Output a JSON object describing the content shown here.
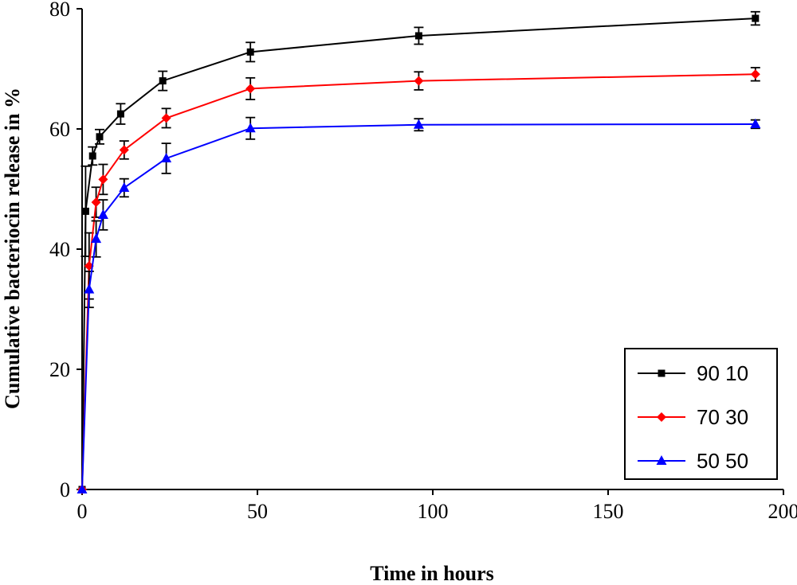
{
  "chart_data": {
    "type": "line",
    "title": "",
    "xlabel": "Time in hours",
    "ylabel": "Cumulative bacteriocin release in %",
    "xlim": [
      0,
      200
    ],
    "ylim": [
      0,
      80
    ],
    "xticks": [
      0,
      50,
      100,
      150,
      200
    ],
    "xtick_labels": [
      "0",
      "50",
      "100",
      "150",
      "200"
    ],
    "yticks": [
      0,
      20,
      40,
      60,
      80
    ],
    "ytick_labels": [
      "0",
      "20",
      "40",
      "60",
      "80"
    ],
    "grid": false,
    "legend_position": "bottom-right",
    "series": [
      {
        "name": "90 10",
        "color": "#000000",
        "marker": "square",
        "x": [
          0,
          1,
          3,
          5,
          11,
          23,
          48,
          96,
          192
        ],
        "y": [
          0,
          46.3,
          55.5,
          58.7,
          62.5,
          68.0,
          72.8,
          75.5,
          78.4
        ],
        "err": [
          0,
          7.5,
          1.5,
          1.2,
          1.7,
          1.6,
          1.6,
          1.4,
          1.1
        ]
      },
      {
        "name": "70 30",
        "color": "#ff0000",
        "marker": "diamond",
        "x": [
          0,
          2,
          4,
          6,
          12,
          24,
          48,
          96,
          192
        ],
        "y": [
          0,
          37.2,
          47.8,
          51.6,
          56.5,
          61.8,
          66.7,
          68.0,
          69.1
        ],
        "err": [
          0,
          5.5,
          2.5,
          2.5,
          1.5,
          1.6,
          1.8,
          1.5,
          1.1
        ]
      },
      {
        "name": "50 50",
        "color": "#0000ff",
        "marker": "triangle",
        "x": [
          0,
          2,
          4,
          6,
          12,
          24,
          48,
          96,
          192
        ],
        "y": [
          0,
          33.3,
          41.7,
          45.7,
          50.2,
          55.1,
          60.1,
          60.7,
          60.8
        ],
        "err": [
          0,
          3.0,
          3.0,
          2.5,
          1.5,
          2.5,
          1.8,
          1.0,
          0.7
        ]
      }
    ]
  }
}
